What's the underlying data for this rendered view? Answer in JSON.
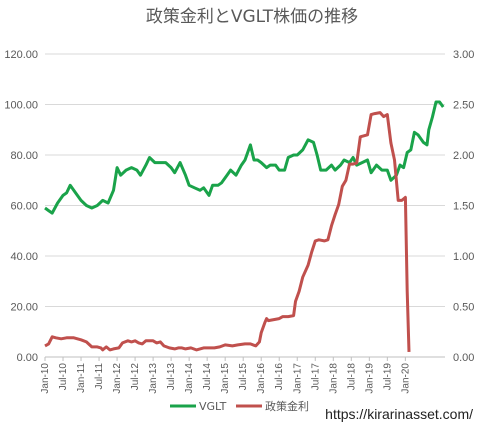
{
  "chart_data": {
    "type": "line",
    "title": "政策金利とVGLT株価の推移",
    "y_left": {
      "range": [
        0,
        120
      ],
      "ticks": [
        "0.00",
        "20.00",
        "40.00",
        "60.00",
        "80.00",
        "100.00",
        "120.00"
      ]
    },
    "y_right": {
      "range": [
        0,
        3
      ],
      "ticks": [
        "0.00",
        "0.50",
        "1.00",
        "1.50",
        "2.00",
        "2.50",
        "3.00"
      ]
    },
    "x_ticks": [
      "Jan-10",
      "Jul-10",
      "Jan-11",
      "Jul-11",
      "Jan-12",
      "Jul-12",
      "Jan-13",
      "Jul-13",
      "Jan-14",
      "Jul-14",
      "Jan-15",
      "Jul-15",
      "Jan-16",
      "Jul-16",
      "Jan-17",
      "Jul-17",
      "Jan-18",
      "Jul-18",
      "Jan-19",
      "Jul-19",
      "Jan-20"
    ],
    "grid": true,
    "legend_position": "bottom",
    "series": [
      {
        "name": "VGLT",
        "axis": "left",
        "color": "#1aa34a",
        "points": [
          [
            2010.0,
            59
          ],
          [
            2010.1,
            58
          ],
          [
            2010.2,
            57
          ],
          [
            2010.35,
            61
          ],
          [
            2010.5,
            64
          ],
          [
            2010.6,
            65
          ],
          [
            2010.7,
            68
          ],
          [
            2010.85,
            65
          ],
          [
            2011.0,
            62
          ],
          [
            2011.15,
            60
          ],
          [
            2011.3,
            59
          ],
          [
            2011.45,
            60
          ],
          [
            2011.6,
            62
          ],
          [
            2011.75,
            61
          ],
          [
            2011.9,
            66
          ],
          [
            2012.0,
            75
          ],
          [
            2012.1,
            72
          ],
          [
            2012.25,
            74
          ],
          [
            2012.4,
            75
          ],
          [
            2012.55,
            74
          ],
          [
            2012.65,
            72
          ],
          [
            2012.8,
            76
          ],
          [
            2012.9,
            79
          ],
          [
            2013.05,
            77
          ],
          [
            2013.2,
            77
          ],
          [
            2013.35,
            77
          ],
          [
            2013.5,
            75
          ],
          [
            2013.6,
            73
          ],
          [
            2013.75,
            77
          ],
          [
            2013.9,
            72
          ],
          [
            2014.0,
            68
          ],
          [
            2014.15,
            67
          ],
          [
            2014.3,
            66
          ],
          [
            2014.4,
            67
          ],
          [
            2014.55,
            64
          ],
          [
            2014.65,
            68
          ],
          [
            2014.8,
            68
          ],
          [
            2014.9,
            69
          ],
          [
            2015.05,
            72
          ],
          [
            2015.15,
            74
          ],
          [
            2015.3,
            72
          ],
          [
            2015.45,
            76
          ],
          [
            2015.55,
            78
          ],
          [
            2015.7,
            84
          ],
          [
            2015.8,
            78
          ],
          [
            2015.9,
            78
          ],
          [
            2016.0,
            77
          ],
          [
            2016.15,
            75
          ],
          [
            2016.25,
            76
          ],
          [
            2016.4,
            76
          ],
          [
            2016.5,
            74
          ],
          [
            2016.65,
            74
          ],
          [
            2016.75,
            79
          ],
          [
            2016.9,
            80
          ],
          [
            2017.0,
            80
          ],
          [
            2017.15,
            82
          ],
          [
            2017.3,
            86
          ],
          [
            2017.45,
            85
          ],
          [
            2017.55,
            80
          ],
          [
            2017.65,
            74
          ],
          [
            2017.8,
            74
          ],
          [
            2017.95,
            76
          ],
          [
            2018.05,
            74
          ],
          [
            2018.2,
            76
          ],
          [
            2018.3,
            78
          ],
          [
            2018.45,
            77
          ],
          [
            2018.55,
            79
          ],
          [
            2018.65,
            76
          ],
          [
            2018.8,
            77
          ],
          [
            2018.95,
            78
          ],
          [
            2019.05,
            73
          ],
          [
            2019.2,
            76
          ],
          [
            2019.35,
            74
          ],
          [
            2019.5,
            74
          ],
          [
            2019.6,
            70
          ],
          [
            2019.75,
            72
          ],
          [
            2019.85,
            76
          ],
          [
            2019.95,
            75
          ],
          [
            2020.05,
            81
          ],
          [
            2020.15,
            82
          ],
          [
            2020.25,
            89
          ],
          [
            2020.35,
            88
          ],
          [
            2020.5,
            85
          ],
          [
            2020.6,
            84
          ],
          [
            2020.65,
            90
          ],
          [
            2020.75,
            95
          ],
          [
            2020.85,
            101
          ],
          [
            2020.95,
            101
          ],
          [
            2021.05,
            99
          ]
        ]
      },
      {
        "name": "政策金利",
        "axis": "right",
        "color": "#c0504d",
        "points": [
          [
            2010.0,
            0.11
          ],
          [
            2010.1,
            0.13
          ],
          [
            2010.2,
            0.2
          ],
          [
            2010.3,
            0.19
          ],
          [
            2010.45,
            0.18
          ],
          [
            2010.6,
            0.19
          ],
          [
            2010.8,
            0.19
          ],
          [
            2011.0,
            0.17
          ],
          [
            2011.15,
            0.15
          ],
          [
            2011.3,
            0.1
          ],
          [
            2011.45,
            0.1
          ],
          [
            2011.55,
            0.09
          ],
          [
            2011.6,
            0.07
          ],
          [
            2011.7,
            0.1
          ],
          [
            2011.8,
            0.07
          ],
          [
            2011.9,
            0.08
          ],
          [
            2012.05,
            0.09
          ],
          [
            2012.15,
            0.14
          ],
          [
            2012.3,
            0.16
          ],
          [
            2012.4,
            0.15
          ],
          [
            2012.5,
            0.16
          ],
          [
            2012.6,
            0.14
          ],
          [
            2012.7,
            0.13
          ],
          [
            2012.8,
            0.16
          ],
          [
            2012.9,
            0.16
          ],
          [
            2013.0,
            0.16
          ],
          [
            2013.1,
            0.14
          ],
          [
            2013.2,
            0.15
          ],
          [
            2013.3,
            0.11
          ],
          [
            2013.45,
            0.09
          ],
          [
            2013.6,
            0.08
          ],
          [
            2013.7,
            0.09
          ],
          [
            2013.8,
            0.09
          ],
          [
            2013.9,
            0.08
          ],
          [
            2014.05,
            0.09
          ],
          [
            2014.2,
            0.07
          ],
          [
            2014.4,
            0.09
          ],
          [
            2014.55,
            0.09
          ],
          [
            2014.7,
            0.09
          ],
          [
            2014.85,
            0.1
          ],
          [
            2015.0,
            0.12
          ],
          [
            2015.2,
            0.11
          ],
          [
            2015.35,
            0.12
          ],
          [
            2015.55,
            0.13
          ],
          [
            2015.7,
            0.13
          ],
          [
            2015.85,
            0.11
          ],
          [
            2015.95,
            0.15
          ],
          [
            2016.0,
            0.24
          ],
          [
            2016.1,
            0.34
          ],
          [
            2016.15,
            0.38
          ],
          [
            2016.2,
            0.36
          ],
          [
            2016.35,
            0.37
          ],
          [
            2016.5,
            0.38
          ],
          [
            2016.6,
            0.4
          ],
          [
            2016.75,
            0.4
          ],
          [
            2016.9,
            0.41
          ],
          [
            2016.95,
            0.55
          ],
          [
            2017.05,
            0.65
          ],
          [
            2017.15,
            0.79
          ],
          [
            2017.3,
            0.91
          ],
          [
            2017.4,
            1.04
          ],
          [
            2017.5,
            1.15
          ],
          [
            2017.6,
            1.16
          ],
          [
            2017.75,
            1.15
          ],
          [
            2017.85,
            1.16
          ],
          [
            2017.95,
            1.3
          ],
          [
            2018.05,
            1.41
          ],
          [
            2018.15,
            1.51
          ],
          [
            2018.25,
            1.69
          ],
          [
            2018.35,
            1.75
          ],
          [
            2018.45,
            1.91
          ],
          [
            2018.55,
            1.91
          ],
          [
            2018.65,
            1.92
          ],
          [
            2018.75,
            2.18
          ],
          [
            2018.85,
            2.19
          ],
          [
            2018.95,
            2.2
          ],
          [
            2019.05,
            2.4
          ],
          [
            2019.15,
            2.41
          ],
          [
            2019.3,
            2.42
          ],
          [
            2019.4,
            2.38
          ],
          [
            2019.5,
            2.4
          ],
          [
            2019.6,
            2.12
          ],
          [
            2019.7,
            1.95
          ],
          [
            2019.8,
            1.55
          ],
          [
            2019.9,
            1.55
          ],
          [
            2020.0,
            1.58
          ],
          [
            2020.05,
            0.65
          ],
          [
            2020.1,
            0.05
          ]
        ]
      }
    ]
  },
  "watermark": "https://kirarinasset.com/"
}
